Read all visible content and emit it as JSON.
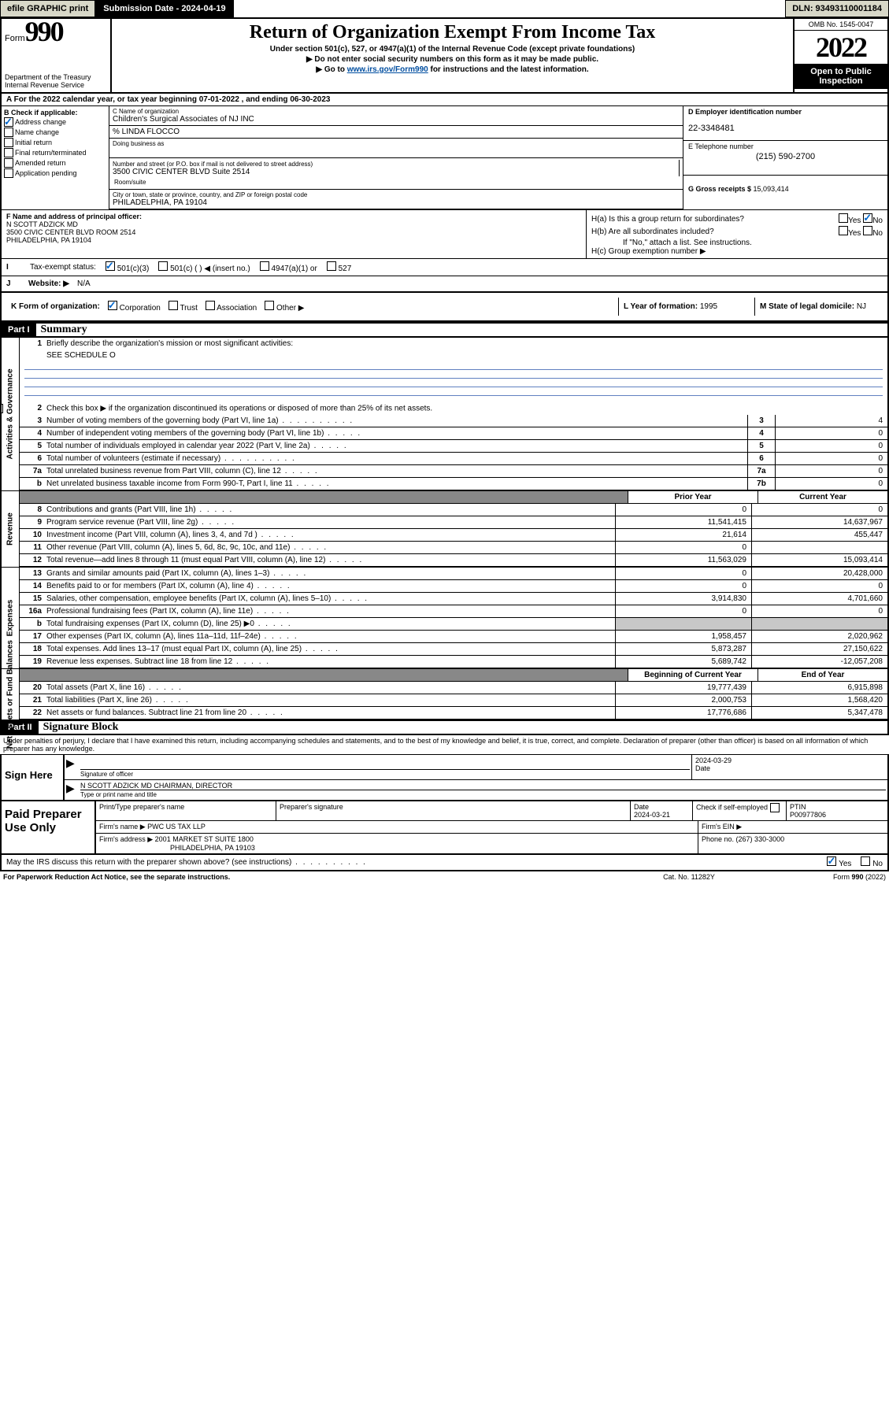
{
  "topbar": {
    "efile": "efile GRAPHIC print",
    "submission_label": "Submission Date - 2024-04-19",
    "dln": "DLN: 93493110001184"
  },
  "header": {
    "form_word": "Form",
    "form_num": "990",
    "dept": "Department of the Treasury",
    "irs": "Internal Revenue Service",
    "title": "Return of Organization Exempt From Income Tax",
    "sub1": "Under section 501(c), 527, or 4947(a)(1) of the Internal Revenue Code (except private foundations)",
    "sub2": "▶ Do not enter social security numbers on this form as it may be made public.",
    "sub3_pre": "▶ Go to ",
    "sub3_link": "www.irs.gov/Form990",
    "sub3_post": " for instructions and the latest information.",
    "omb": "OMB No. 1545-0047",
    "year": "2022",
    "open": "Open to Public Inspection"
  },
  "row_a": "A For the 2022 calendar year, or tax year beginning 07-01-2022   , and ending 06-30-2023",
  "col_b": {
    "hdr": "B Check if applicable:",
    "items": [
      {
        "label": "Address change",
        "checked": true
      },
      {
        "label": "Name change",
        "checked": false
      },
      {
        "label": "Initial return",
        "checked": false
      },
      {
        "label": "Final return/terminated",
        "checked": false
      },
      {
        "label": "Amended return",
        "checked": false
      },
      {
        "label": "Application pending",
        "checked": false
      }
    ]
  },
  "col_c": {
    "name_lab": "C Name of organization",
    "name": "Children's Surgical Associates of NJ INC",
    "care_lab": "% LINDA FLOCCO",
    "dba_lab": "Doing business as",
    "addr_lab": "Number and street (or P.O. box if mail is not delivered to street address)",
    "addr": "3500 CIVIC CENTER BLVD Suite 2514",
    "room_lab": "Room/suite",
    "city_lab": "City or town, state or province, country, and ZIP or foreign postal code",
    "city": "PHILADELPHIA, PA  19104"
  },
  "col_de": {
    "d_lab": "D Employer identification number",
    "ein": "22-3348481",
    "e_lab": "E Telephone number",
    "phone": "(215) 590-2700",
    "g_lab": "G Gross receipts $ ",
    "gross": "15,093,414"
  },
  "f": {
    "lab": "F Name and address of principal officer:",
    "name": "N SCOTT ADZICK MD",
    "addr1": "3500 CIVIC CENTER BLVD ROOM 2514",
    "addr2": "PHILADELPHIA, PA  19104"
  },
  "h": {
    "a": "H(a)  Is this a group return for subordinates?",
    "b": "H(b)  Are all subordinates included?",
    "note": "If \"No,\" attach a list. See instructions.",
    "c": "H(c)  Group exemption number ▶"
  },
  "i": {
    "lab": "Tax-exempt status:",
    "o1": "501(c)(3)",
    "o2": "501(c) (  ) ◀ (insert no.)",
    "o3": "4947(a)(1) or",
    "o4": "527"
  },
  "j": {
    "lab": "Website: ▶",
    "val": "N/A"
  },
  "k": {
    "lab": "K Form of organization:",
    "opts": [
      "Corporation",
      "Trust",
      "Association",
      "Other ▶"
    ]
  },
  "l": {
    "lab": "L Year of formation: ",
    "val": "1995"
  },
  "m": {
    "lab": "M State of legal domicile: ",
    "val": "NJ"
  },
  "part1": {
    "hdr": "Part I",
    "title": "Summary",
    "side_ag": "Activities & Governance",
    "side_rev": "Revenue",
    "side_exp": "Expenses",
    "side_na": "Net Assets or Fund Balances",
    "line1": "Briefly describe the organization's mission or most significant activities:",
    "line1v": "SEE SCHEDULE O",
    "line2": "Check this box ▶       if the organization discontinued its operations or disposed of more than 25% of its net assets.",
    "lines": {
      "3": {
        "t": "Number of voting members of the governing body (Part VI, line 1a)",
        "b": "3",
        "v": "4"
      },
      "4": {
        "t": "Number of independent voting members of the governing body (Part VI, line 1b)",
        "b": "4",
        "v": "0"
      },
      "5": {
        "t": "Total number of individuals employed in calendar year 2022 (Part V, line 2a)",
        "b": "5",
        "v": "0"
      },
      "6": {
        "t": "Total number of volunteers (estimate if necessary)",
        "b": "6",
        "v": "0"
      },
      "7a": {
        "t": "Total unrelated business revenue from Part VIII, column (C), line 12",
        "b": "7a",
        "v": "0"
      },
      "7b": {
        "t": "Net unrelated business taxable income from Form 990-T, Part I, line 11",
        "b": "7b",
        "v": "0"
      }
    },
    "col_prior": "Prior Year",
    "col_curr": "Current Year",
    "rev": [
      {
        "n": "8",
        "t": "Contributions and grants (Part VIII, line 1h)",
        "p": "0",
        "c": "0"
      },
      {
        "n": "9",
        "t": "Program service revenue (Part VIII, line 2g)",
        "p": "11,541,415",
        "c": "14,637,967"
      },
      {
        "n": "10",
        "t": "Investment income (Part VIII, column (A), lines 3, 4, and 7d )",
        "p": "21,614",
        "c": "455,447"
      },
      {
        "n": "11",
        "t": "Other revenue (Part VIII, column (A), lines 5, 6d, 8c, 9c, 10c, and 11e)",
        "p": "0",
        "c": ""
      },
      {
        "n": "12",
        "t": "Total revenue—add lines 8 through 11 (must equal Part VIII, column (A), line 12)",
        "p": "11,563,029",
        "c": "15,093,414"
      }
    ],
    "exp": [
      {
        "n": "13",
        "t": "Grants and similar amounts paid (Part IX, column (A), lines 1–3)",
        "p": "0",
        "c": "20,428,000"
      },
      {
        "n": "14",
        "t": "Benefits paid to or for members (Part IX, column (A), line 4)",
        "p": "0",
        "c": "0"
      },
      {
        "n": "15",
        "t": "Salaries, other compensation, employee benefits (Part IX, column (A), lines 5–10)",
        "p": "3,914,830",
        "c": "4,701,660"
      },
      {
        "n": "16a",
        "t": "Professional fundraising fees (Part IX, column (A), line 11e)",
        "p": "0",
        "c": "0"
      },
      {
        "n": "b",
        "t": "Total fundraising expenses (Part IX, column (D), line 25) ▶0",
        "p": "",
        "c": "",
        "shade": true
      },
      {
        "n": "17",
        "t": "Other expenses (Part IX, column (A), lines 11a–11d, 11f–24e)",
        "p": "1,958,457",
        "c": "2,020,962"
      },
      {
        "n": "18",
        "t": "Total expenses. Add lines 13–17 (must equal Part IX, column (A), line 25)",
        "p": "5,873,287",
        "c": "27,150,622"
      },
      {
        "n": "19",
        "t": "Revenue less expenses. Subtract line 18 from line 12",
        "p": "5,689,742",
        "c": "-12,057,208"
      }
    ],
    "col_beg": "Beginning of Current Year",
    "col_end": "End of Year",
    "na": [
      {
        "n": "20",
        "t": "Total assets (Part X, line 16)",
        "p": "19,777,439",
        "c": "6,915,898"
      },
      {
        "n": "21",
        "t": "Total liabilities (Part X, line 26)",
        "p": "2,000,753",
        "c": "1,568,420"
      },
      {
        "n": "22",
        "t": "Net assets or fund balances. Subtract line 21 from line 20",
        "p": "17,776,686",
        "c": "5,347,478"
      }
    ]
  },
  "part2": {
    "hdr": "Part II",
    "title": "Signature Block",
    "decl": "Under penalties of perjury, I declare that I have examined this return, including accompanying schedules and statements, and to the best of my knowledge and belief, it is true, correct, and complete. Declaration of preparer (other than officer) is based on all information of which preparer has any knowledge."
  },
  "sign": {
    "here": "Sign Here",
    "sig_lab": "Signature of officer",
    "date": "2024-03-29",
    "date_lab": "Date",
    "name": "N SCOTT ADZICK MD  CHAIRMAN, DIRECTOR",
    "name_lab": "Type or print name and title"
  },
  "paid": {
    "here": "Paid Preparer Use Only",
    "c1": "Print/Type preparer's name",
    "c2": "Preparer's signature",
    "c3": "Date",
    "c3v": "2024-03-21",
    "c4_lab": "Check         if self-employed",
    "c5": "PTIN",
    "c5v": "P00977806",
    "firm_lab": "Firm's name    ▶",
    "firm": "PWC US TAX LLP",
    "ein_lab": "Firm's EIN ▶",
    "addr_lab": "Firm's address ▶",
    "addr1": "2001 MARKET ST SUITE 1800",
    "addr2": "PHILADELPHIA, PA  19103",
    "phone_lab": "Phone no. ",
    "phone": "(267) 330-3000"
  },
  "may": {
    "q": "May the IRS discuss this return with the preparer shown above? (see instructions)",
    "yes": "Yes",
    "no": "No"
  },
  "footer": {
    "l": "For Paperwork Reduction Act Notice, see the separate instructions.",
    "m": "Cat. No. 11282Y",
    "r": "Form 990 (2022)"
  },
  "colors": {
    "link": "#004ea0",
    "check_on": "#0066cc",
    "shade": "#c8c8c8"
  }
}
